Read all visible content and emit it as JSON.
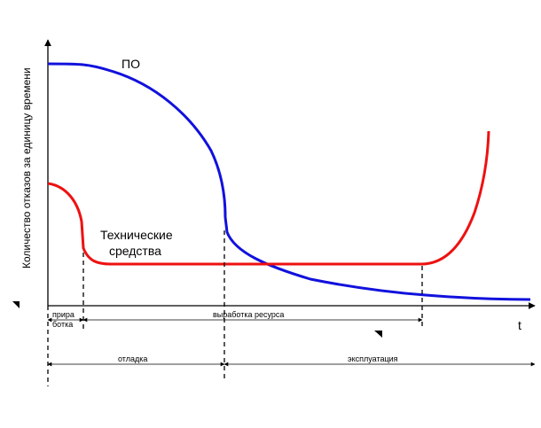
{
  "labels": {
    "y_axis": "Количество отказов за единицу времени",
    "x_axis": "t",
    "curve_software": "ПО",
    "curve_hardware_line1": "Технические",
    "curve_hardware_line2": "средства"
  },
  "phases": {
    "burn_in_line1": "прира",
    "burn_in_line2": "ботка",
    "wear_out": "выработка ресурса",
    "debugging": "отладка",
    "operation": "эксплуатация"
  },
  "colors": {
    "software_curve": "#1111dd",
    "hardware_curve": "#ee1111",
    "axes": "#000000"
  }
}
